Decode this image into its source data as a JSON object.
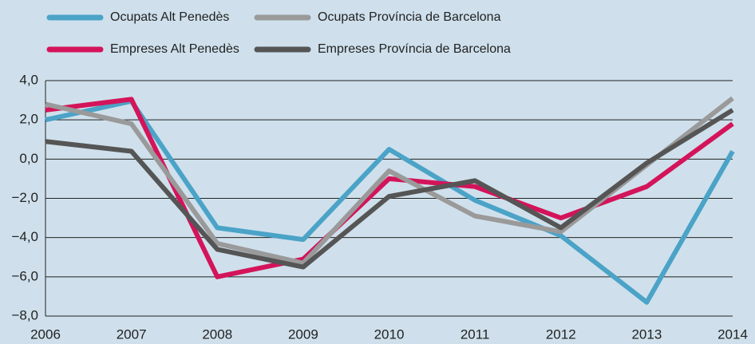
{
  "chart_data": {
    "type": "line",
    "categories": [
      "2006",
      "2007",
      "2008",
      "2009",
      "2010",
      "2011",
      "2012",
      "2013",
      "2014"
    ],
    "series": [
      {
        "name": "Ocupats Alt Penedès",
        "color": "#4ba3c7",
        "values": [
          2.0,
          2.95,
          -3.5,
          -4.1,
          0.5,
          -2.1,
          -3.9,
          -7.3,
          0.4
        ]
      },
      {
        "name": "Empreses Alt Penedès",
        "color": "#d4145a",
        "values": [
          2.5,
          3.05,
          -6.0,
          -5.1,
          -1.0,
          -1.4,
          -3.0,
          -1.4,
          1.8
        ]
      },
      {
        "name": "Ocupats Província de Barcelona",
        "color": "#9a9a9a",
        "values": [
          2.8,
          1.8,
          -4.3,
          -5.3,
          -0.6,
          -2.9,
          -3.7,
          -0.3,
          3.1
        ]
      },
      {
        "name": "Empreses Província de Barcelona",
        "color": "#555555",
        "values": [
          0.9,
          0.4,
          -4.6,
          -5.5,
          -1.9,
          -1.1,
          -3.5,
          -0.2,
          2.5
        ]
      }
    ],
    "ylim": [
      -8,
      4
    ],
    "yticks": [
      {
        "value": -8,
        "label": "−8,0"
      },
      {
        "value": -6,
        "label": "−6,0"
      },
      {
        "value": -4,
        "label": "−4,0"
      },
      {
        "value": -2,
        "label": "−2,0"
      },
      {
        "value": 0,
        "label": "0,0"
      },
      {
        "value": 2,
        "label": "2,0"
      },
      {
        "value": 4,
        "label": "4,0"
      }
    ],
    "grid": true
  }
}
